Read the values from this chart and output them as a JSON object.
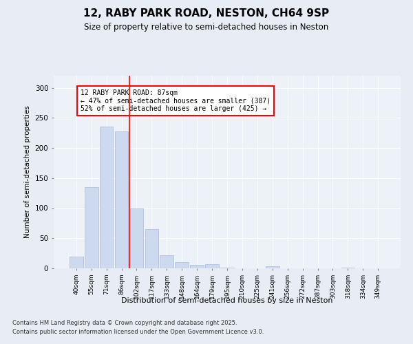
{
  "title1": "12, RABY PARK ROAD, NESTON, CH64 9SP",
  "title2": "Size of property relative to semi-detached houses in Neston",
  "xlabel": "Distribution of semi-detached houses by size in Neston",
  "ylabel": "Number of semi-detached properties",
  "categories": [
    "40sqm",
    "55sqm",
    "71sqm",
    "86sqm",
    "102sqm",
    "117sqm",
    "133sqm",
    "148sqm",
    "164sqm",
    "179sqm",
    "195sqm",
    "210sqm",
    "225sqm",
    "241sqm",
    "256sqm",
    "272sqm",
    "287sqm",
    "303sqm",
    "318sqm",
    "334sqm",
    "349sqm"
  ],
  "values": [
    20,
    135,
    235,
    228,
    100,
    65,
    22,
    10,
    6,
    7,
    1,
    0,
    0,
    4,
    0,
    0,
    0,
    0,
    1,
    0,
    0
  ],
  "bar_color": "#ccd9ee",
  "bar_edge_color": "#aabbd6",
  "property_line_x": 3.5,
  "annotation_text": "12 RABY PARK ROAD: 87sqm\n← 47% of semi-detached houses are smaller (387)\n52% of semi-detached houses are larger (425) →",
  "ylim": [
    0,
    320
  ],
  "yticks": [
    0,
    50,
    100,
    150,
    200,
    250,
    300
  ],
  "footer1": "Contains HM Land Registry data © Crown copyright and database right 2025.",
  "footer2": "Contains public sector information licensed under the Open Government Licence v3.0.",
  "bg_color": "#e8edf5",
  "plot_bg_color": "#edf1f8"
}
